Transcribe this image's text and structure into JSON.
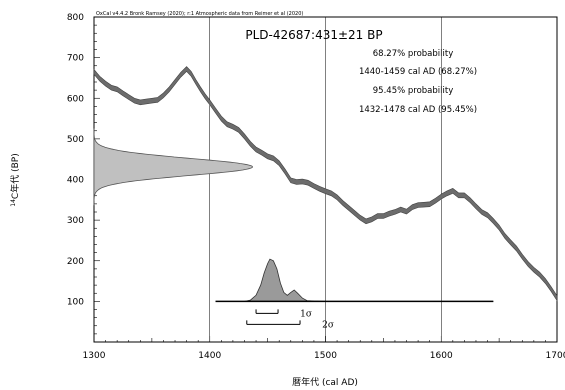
{
  "chart_data": {
    "type": "area",
    "credit": "OxCal v4.4.2 Bronk Ramsey (2020); r:1 Atmospheric data from Reimer et al (2020)",
    "title": "PLD-42687:431±21 BP",
    "xlabel": "暦年代 (cal AD)",
    "ylabel_sup": "14",
    "ylabel_rest": "C年代 (BP)",
    "xlim": [
      1300,
      1700
    ],
    "ylim": [
      0,
      800
    ],
    "x_ticks": [
      1300,
      1400,
      1500,
      1600,
      1700
    ],
    "y_ticks": [
      100,
      200,
      300,
      400,
      500,
      600,
      700,
      800
    ],
    "probability_lines": [
      "68.27% probability",
      "1440-1459 cal AD (68.27%)",
      "95.45% probability",
      "1432-1478 cal AD (95.45%)"
    ],
    "calibration_curve": {
      "band_width_bp": 12,
      "points": [
        [
          1300,
          665
        ],
        [
          1305,
          648
        ],
        [
          1310,
          636
        ],
        [
          1315,
          626
        ],
        [
          1320,
          622
        ],
        [
          1325,
          612
        ],
        [
          1330,
          603
        ],
        [
          1335,
          594
        ],
        [
          1340,
          590
        ],
        [
          1345,
          592
        ],
        [
          1350,
          594
        ],
        [
          1355,
          596
        ],
        [
          1360,
          607
        ],
        [
          1365,
          622
        ],
        [
          1370,
          640
        ],
        [
          1375,
          658
        ],
        [
          1380,
          672
        ],
        [
          1384,
          660
        ],
        [
          1388,
          640
        ],
        [
          1392,
          622
        ],
        [
          1396,
          605
        ],
        [
          1400,
          590
        ],
        [
          1405,
          570
        ],
        [
          1410,
          550
        ],
        [
          1415,
          536
        ],
        [
          1420,
          530
        ],
        [
          1425,
          522
        ],
        [
          1430,
          506
        ],
        [
          1435,
          488
        ],
        [
          1440,
          474
        ],
        [
          1445,
          466
        ],
        [
          1450,
          457
        ],
        [
          1455,
          452
        ],
        [
          1460,
          440
        ],
        [
          1465,
          420
        ],
        [
          1470,
          398
        ],
        [
          1475,
          394
        ],
        [
          1480,
          395
        ],
        [
          1485,
          392
        ],
        [
          1490,
          384
        ],
        [
          1495,
          377
        ],
        [
          1500,
          371
        ],
        [
          1505,
          366
        ],
        [
          1510,
          356
        ],
        [
          1515,
          342
        ],
        [
          1520,
          330
        ],
        [
          1525,
          318
        ],
        [
          1530,
          306
        ],
        [
          1535,
          297
        ],
        [
          1540,
          302
        ],
        [
          1545,
          310
        ],
        [
          1550,
          310
        ],
        [
          1555,
          316
        ],
        [
          1560,
          320
        ],
        [
          1565,
          326
        ],
        [
          1570,
          321
        ],
        [
          1575,
          332
        ],
        [
          1580,
          337
        ],
        [
          1585,
          338
        ],
        [
          1590,
          339
        ],
        [
          1595,
          348
        ],
        [
          1600,
          358
        ],
        [
          1605,
          366
        ],
        [
          1610,
          372
        ],
        [
          1615,
          361
        ],
        [
          1620,
          361
        ],
        [
          1625,
          349
        ],
        [
          1630,
          334
        ],
        [
          1635,
          320
        ],
        [
          1640,
          312
        ],
        [
          1645,
          298
        ],
        [
          1650,
          282
        ],
        [
          1655,
          261
        ],
        [
          1660,
          245
        ],
        [
          1665,
          230
        ],
        [
          1670,
          210
        ],
        [
          1675,
          192
        ],
        [
          1680,
          178
        ],
        [
          1685,
          166
        ],
        [
          1690,
          150
        ],
        [
          1695,
          130
        ],
        [
          1700,
          108
        ]
      ]
    },
    "radiocarbon_distribution": {
      "mean_bp": 431,
      "sigma_bp": 21,
      "peak_calendar_year": 1437
    },
    "calibrated_distribution": {
      "baseline_bp": 100,
      "start_year": 1405,
      "end_year": 1645,
      "points": [
        [
          1405,
          100
        ],
        [
          1430,
          100
        ],
        [
          1435,
          103
        ],
        [
          1440,
          115
        ],
        [
          1444,
          140
        ],
        [
          1447,
          170
        ],
        [
          1450,
          193
        ],
        [
          1452,
          204
        ],
        [
          1455,
          200
        ],
        [
          1458,
          180
        ],
        [
          1461,
          145
        ],
        [
          1464,
          122
        ],
        [
          1467,
          115
        ],
        [
          1470,
          122
        ],
        [
          1473,
          128
        ],
        [
          1476,
          120
        ],
        [
          1480,
          108
        ],
        [
          1484,
          102
        ],
        [
          1490,
          101
        ],
        [
          1500,
          100
        ],
        [
          1645,
          100
        ]
      ]
    },
    "sigma_ranges": [
      {
        "label": "1σ",
        "from": 1440,
        "to": 1459
      },
      {
        "label": "2σ",
        "from": 1432,
        "to": 1478
      }
    ]
  }
}
